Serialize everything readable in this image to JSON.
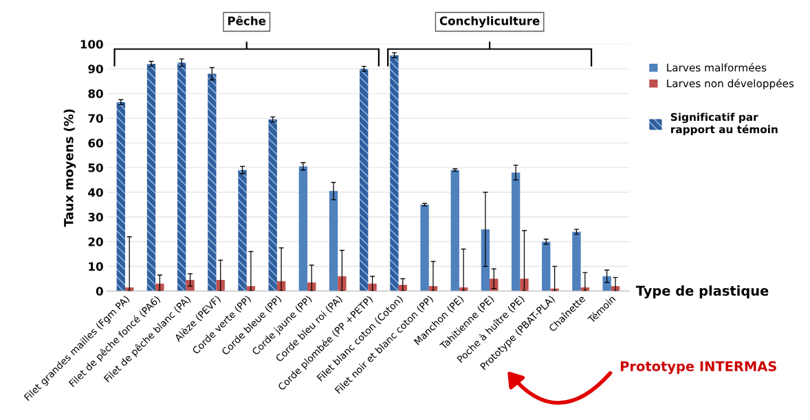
{
  "chart_data": {
    "type": "bar",
    "categories": [
      "Filet grandes mailles (Fgm PA)",
      "Filet de pêche foncé (PA6)",
      "Filet de pêche blanc (PA)",
      "Alèze (PEVF)",
      "Corde verte (PP)",
      "Corde bleue (PP)",
      "Corde jaune (PP)",
      "Corde bleu roi (PA)",
      "Corde plombée (PP +PETP)",
      "Filet blanc coton (Coton)",
      "Filet noir et blanc coton (PP)",
      "Manchon (PE)",
      "Tahitienne (PE)",
      "Poche à huître (PE)",
      "Prototype (PBAT-PLA)",
      "Chaînette",
      "Témoin"
    ],
    "series": [
      {
        "name": "Larves malformées",
        "color": "#4f81bd",
        "values": [
          76.5,
          92,
          92.5,
          88,
          49,
          69.5,
          50.5,
          40.5,
          90,
          95.5,
          35,
          49,
          25,
          48,
          20,
          24,
          6
        ],
        "errors": [
          1,
          1,
          1.5,
          2.5,
          1.5,
          1,
          1.5,
          3.5,
          1,
          1,
          0.5,
          0.5,
          15,
          3,
          1,
          1,
          2.5
        ],
        "colors": [
          "#2f5f9e",
          "#2f5f9e",
          "#2f5f9e",
          "#2f5f9e",
          "#2f5f9e",
          "#2f5f9e",
          "#4f81bd",
          "#4f81bd",
          "#2f5f9e",
          "#2f5f9e",
          "#4f81bd",
          "#4f81bd",
          "#4f81bd",
          "#4f81bd",
          "#4f81bd",
          "#4f81bd",
          "#4f81bd"
        ]
      },
      {
        "name": "Larves non développées",
        "color": "#c0504d",
        "values": [
          1.5,
          3,
          4.5,
          4.5,
          2,
          4,
          3.5,
          6,
          3,
          2.5,
          2,
          1.5,
          5,
          5,
          1,
          1.5,
          2
        ],
        "errors": [
          [
            0,
            22
          ],
          [
            0,
            6.5
          ],
          [
            2,
            7
          ],
          [
            0,
            12.5
          ],
          [
            0,
            16
          ],
          [
            0,
            17.5
          ],
          [
            0,
            10.5
          ],
          [
            0,
            16.5
          ],
          [
            0,
            6
          ],
          [
            0,
            5
          ],
          [
            0,
            12
          ],
          [
            0,
            17
          ],
          [
            1,
            9
          ],
          [
            0,
            24.5
          ],
          [
            0,
            10
          ],
          [
            0,
            7.5
          ],
          [
            0,
            5.5
          ]
        ]
      }
    ],
    "ylabel": "Taux moyens (%)",
    "ylim": [
      0,
      100
    ],
    "yticks": [
      0,
      10,
      20,
      30,
      40,
      50,
      60,
      70,
      80,
      90,
      100
    ],
    "grid": "y",
    "legend": "right",
    "annotations": [
      "Pêche",
      "Conchyliculture",
      "Significatif par rapport au témoin",
      "Type de plastique",
      "Prototype INTERMAS"
    ]
  }
}
